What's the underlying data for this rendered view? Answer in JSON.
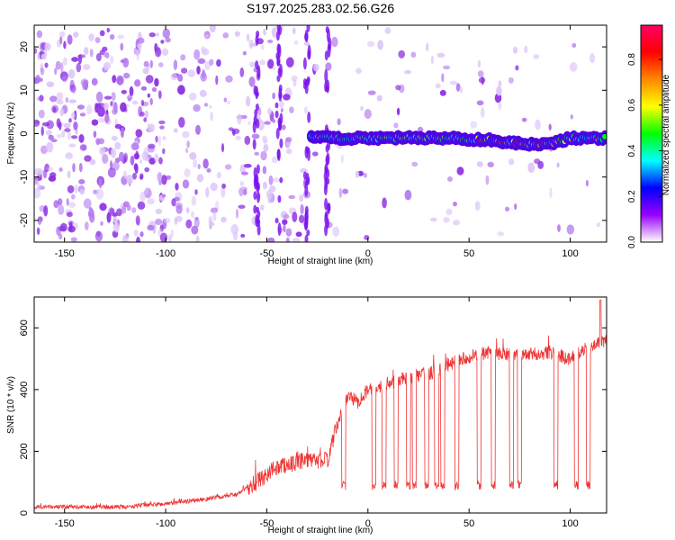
{
  "figure": {
    "title": "S197.2025.283.02.56.G26"
  },
  "chart_data": [
    {
      "type": "heatmap",
      "title": "S197.2025.283.02.56.G26",
      "xlabel": "Height of straight line (km)",
      "ylabel": "Frequency (Hz)",
      "xlim": [
        -165,
        118
      ],
      "ylim": [
        -25,
        25
      ],
      "x_ticks": [
        -150,
        -100,
        -50,
        0,
        50,
        100
      ],
      "y_ticks": [
        -20,
        -10,
        0,
        10,
        20
      ],
      "colorbar": {
        "label": "Normalized spectral amplitude",
        "range": [
          0.0,
          0.95
        ],
        "ticks": [
          "0.0",
          "0.2",
          "0.4",
          "0.6",
          "0.8"
        ],
        "colors": [
          "#ffffff",
          "#9900ff",
          "#0000ff",
          "#00ffff",
          "#00ff00",
          "#ffff00",
          "#ff8800",
          "#ff0000",
          "#ff0066"
        ]
      },
      "ridge": {
        "x_start": -28,
        "x_end": 118,
        "frequency_hz": [
          [
            -28,
            -1
          ],
          [
            0,
            -1
          ],
          [
            20,
            -1
          ],
          [
            40,
            -1
          ],
          [
            60,
            -1.5
          ],
          [
            80,
            -2.5
          ],
          [
            90,
            -2.5
          ],
          [
            100,
            -1
          ],
          [
            118,
            -1
          ]
        ],
        "peak_amplitude": 0.9
      }
    },
    {
      "type": "line",
      "xlabel": "Height of straight line (km)",
      "ylabel": "SNR (10 * v/v)",
      "xlim": [
        -165,
        118
      ],
      "ylim": [
        0,
        700
      ],
      "x_ticks": [
        -150,
        -100,
        -50,
        0,
        50,
        100
      ],
      "y_ticks": [
        0,
        200,
        400,
        600
      ],
      "color": "#ee3333",
      "envelope": [
        [
          -165,
          20
        ],
        [
          -120,
          20
        ],
        [
          -100,
          30
        ],
        [
          -80,
          45
        ],
        [
          -65,
          60
        ],
        [
          -55,
          100
        ],
        [
          -45,
          150
        ],
        [
          -30,
          170
        ],
        [
          -20,
          170
        ],
        [
          -15,
          290
        ],
        [
          -10,
          380
        ],
        [
          -5,
          360
        ],
        [
          0,
          400
        ],
        [
          10,
          420
        ],
        [
          20,
          440
        ],
        [
          35,
          460
        ],
        [
          45,
          500
        ],
        [
          60,
          520
        ],
        [
          75,
          510
        ],
        [
          90,
          520
        ],
        [
          100,
          500
        ],
        [
          110,
          540
        ],
        [
          118,
          560
        ]
      ],
      "dropouts_x": [
        -12,
        3,
        8,
        14,
        20,
        23,
        29,
        34,
        37,
        44,
        55,
        62,
        71,
        75,
        93,
        103,
        109
      ],
      "dropout_level": 90,
      "peak": [
        115,
        690
      ]
    }
  ]
}
